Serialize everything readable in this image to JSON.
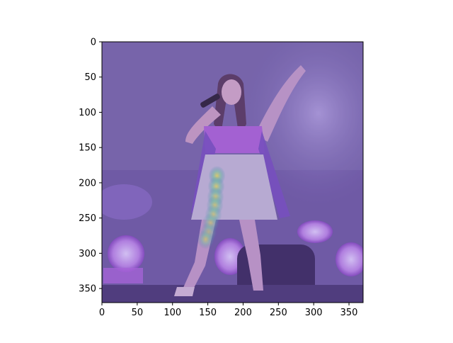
{
  "chart_data": {
    "type": "heatmap",
    "title": "",
    "xlabel": "",
    "ylabel": "",
    "xlim": [
      0,
      370
    ],
    "ylim": [
      370,
      0
    ],
    "x_ticks": [
      0,
      50,
      100,
      150,
      200,
      250,
      300,
      350
    ],
    "y_ticks": [
      0,
      50,
      100,
      150,
      200,
      250,
      300,
      350
    ],
    "x_tick_labels": [
      "0",
      "50",
      "100",
      "150",
      "200",
      "250",
      "300",
      "350"
    ],
    "y_tick_labels": [
      "0",
      "50",
      "100",
      "150",
      "200",
      "250",
      "300",
      "350"
    ],
    "background": "photo of a singer on stage with microphone, tinted purple",
    "overlay_colormap": "viridis",
    "hotspots": [
      {
        "x": 163,
        "y": 190,
        "intensity": 0.9
      },
      {
        "x": 162,
        "y": 205,
        "intensity": 0.85
      },
      {
        "x": 161,
        "y": 220,
        "intensity": 0.8
      },
      {
        "x": 160,
        "y": 232,
        "intensity": 0.75
      },
      {
        "x": 158,
        "y": 245,
        "intensity": 0.7
      },
      {
        "x": 154,
        "y": 257,
        "intensity": 0.65
      },
      {
        "x": 151,
        "y": 270,
        "intensity": 0.6
      },
      {
        "x": 147,
        "y": 280,
        "intensity": 0.7
      }
    ]
  },
  "colors": {
    "tint": "#7a68b0",
    "stage_light": "#c8a0ff",
    "hot": "#f5e84a",
    "warm": "#7fd3a0"
  }
}
